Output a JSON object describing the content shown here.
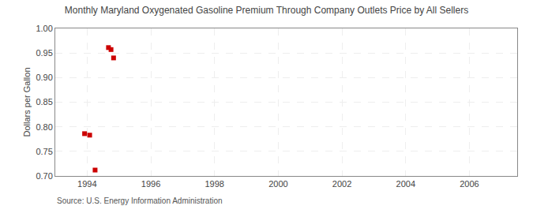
{
  "chart_data": {
    "type": "scatter",
    "title": "Monthly Maryland Oxygenated Gasoline Premium Through Company Outlets Price by All Sellers",
    "ylabel": "Dollars per Gallon",
    "source": "Source: U.S. Energy Information Administration",
    "x": [
      1993.92,
      1994.08,
      1994.67,
      1994.75,
      1994.25,
      1994.83
    ],
    "values": [
      0.786,
      0.783,
      0.961,
      0.957,
      0.712,
      0.94
    ],
    "color": "#cc0000",
    "marker": "square",
    "xlim": [
      1993.0,
      2007.5
    ],
    "ylim": [
      0.7,
      1.0
    ],
    "xticks": [
      1994,
      1996,
      1998,
      2000,
      2002,
      2004,
      2006
    ],
    "yticks": [
      {
        "value": 0.7,
        "label": "0.70"
      },
      0.75,
      {
        "value": 0.8,
        "label": "0.80"
      },
      0.85,
      {
        "value": 0.9,
        "label": "0.90"
      },
      0.95,
      {
        "value": 1.0,
        "label": "1.00"
      }
    ],
    "grid": true
  }
}
